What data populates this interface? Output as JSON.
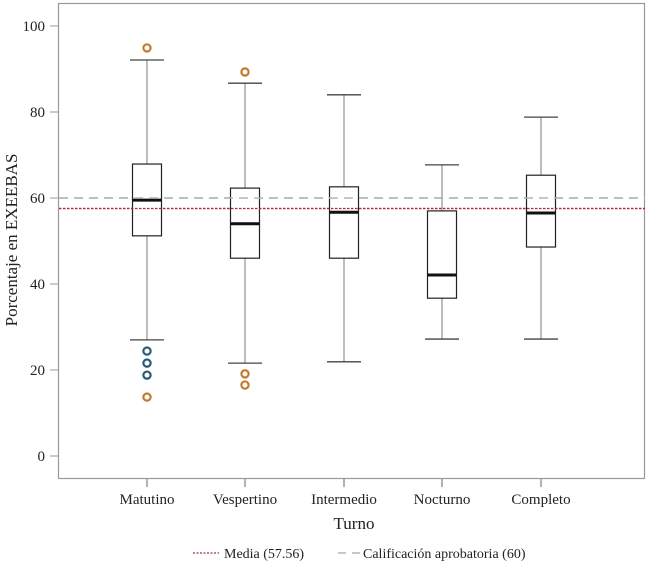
{
  "chart_data": {
    "type": "boxplot",
    "title": "",
    "xlabel": "Turno",
    "ylabel": "Porcentaje en EXEEBAS",
    "ylim": [
      -5,
      105
    ],
    "yticks": [
      0,
      20,
      40,
      60,
      80,
      100
    ],
    "grid": false,
    "categories": [
      "Matutino",
      "Vespertino",
      "Intermedio",
      "Nocturno",
      "Completo"
    ],
    "boxes": [
      {
        "name": "Matutino",
        "whisker_low": 27.0,
        "q1": 51.2,
        "median": 59.5,
        "q3": 67.9,
        "whisker_high": 92.1,
        "outliers": [
          {
            "value": 94.9,
            "type": "extreme"
          },
          {
            "value": 24.4,
            "type": "mild"
          },
          {
            "value": 21.6,
            "type": "mild"
          },
          {
            "value": 18.8,
            "type": "mild"
          },
          {
            "value": 13.7,
            "type": "extreme"
          }
        ]
      },
      {
        "name": "Vespertino",
        "whisker_low": 21.6,
        "q1": 46.0,
        "median": 54.0,
        "q3": 62.3,
        "whisker_high": 86.7,
        "outliers": [
          {
            "value": 89.3,
            "type": "extreme"
          },
          {
            "value": 19.1,
            "type": "extreme"
          },
          {
            "value": 16.5,
            "type": "extreme"
          }
        ]
      },
      {
        "name": "Intermedio",
        "whisker_low": 21.9,
        "q1": 46.0,
        "median": 56.7,
        "q3": 62.6,
        "whisker_high": 84.0,
        "outliers": []
      },
      {
        "name": "Nocturno",
        "whisker_low": 27.2,
        "q1": 36.7,
        "median": 42.1,
        "q3": 57.0,
        "whisker_high": 67.7,
        "outliers": []
      },
      {
        "name": "Completo",
        "whisker_low": 27.2,
        "q1": 48.6,
        "median": 56.5,
        "q3": 65.3,
        "whisker_high": 78.8,
        "outliers": []
      }
    ],
    "reference_lines": [
      {
        "name": "media",
        "value": 57.56,
        "label": "Media (57.56)",
        "style": "dotted",
        "color": "#a0303c"
      },
      {
        "name": "aprobatoria",
        "value": 60,
        "label": "Calificación aprobatoria (60)",
        "style": "dashed",
        "color": "#a9bcb6"
      }
    ],
    "legend": {
      "placement": "bottom-center"
    },
    "colors": {
      "outlier_mild": "#2a5a78",
      "outlier_extreme": "#c47a2c",
      "box": "#222222",
      "whisker": "#999999",
      "frame": "#999999"
    }
  }
}
